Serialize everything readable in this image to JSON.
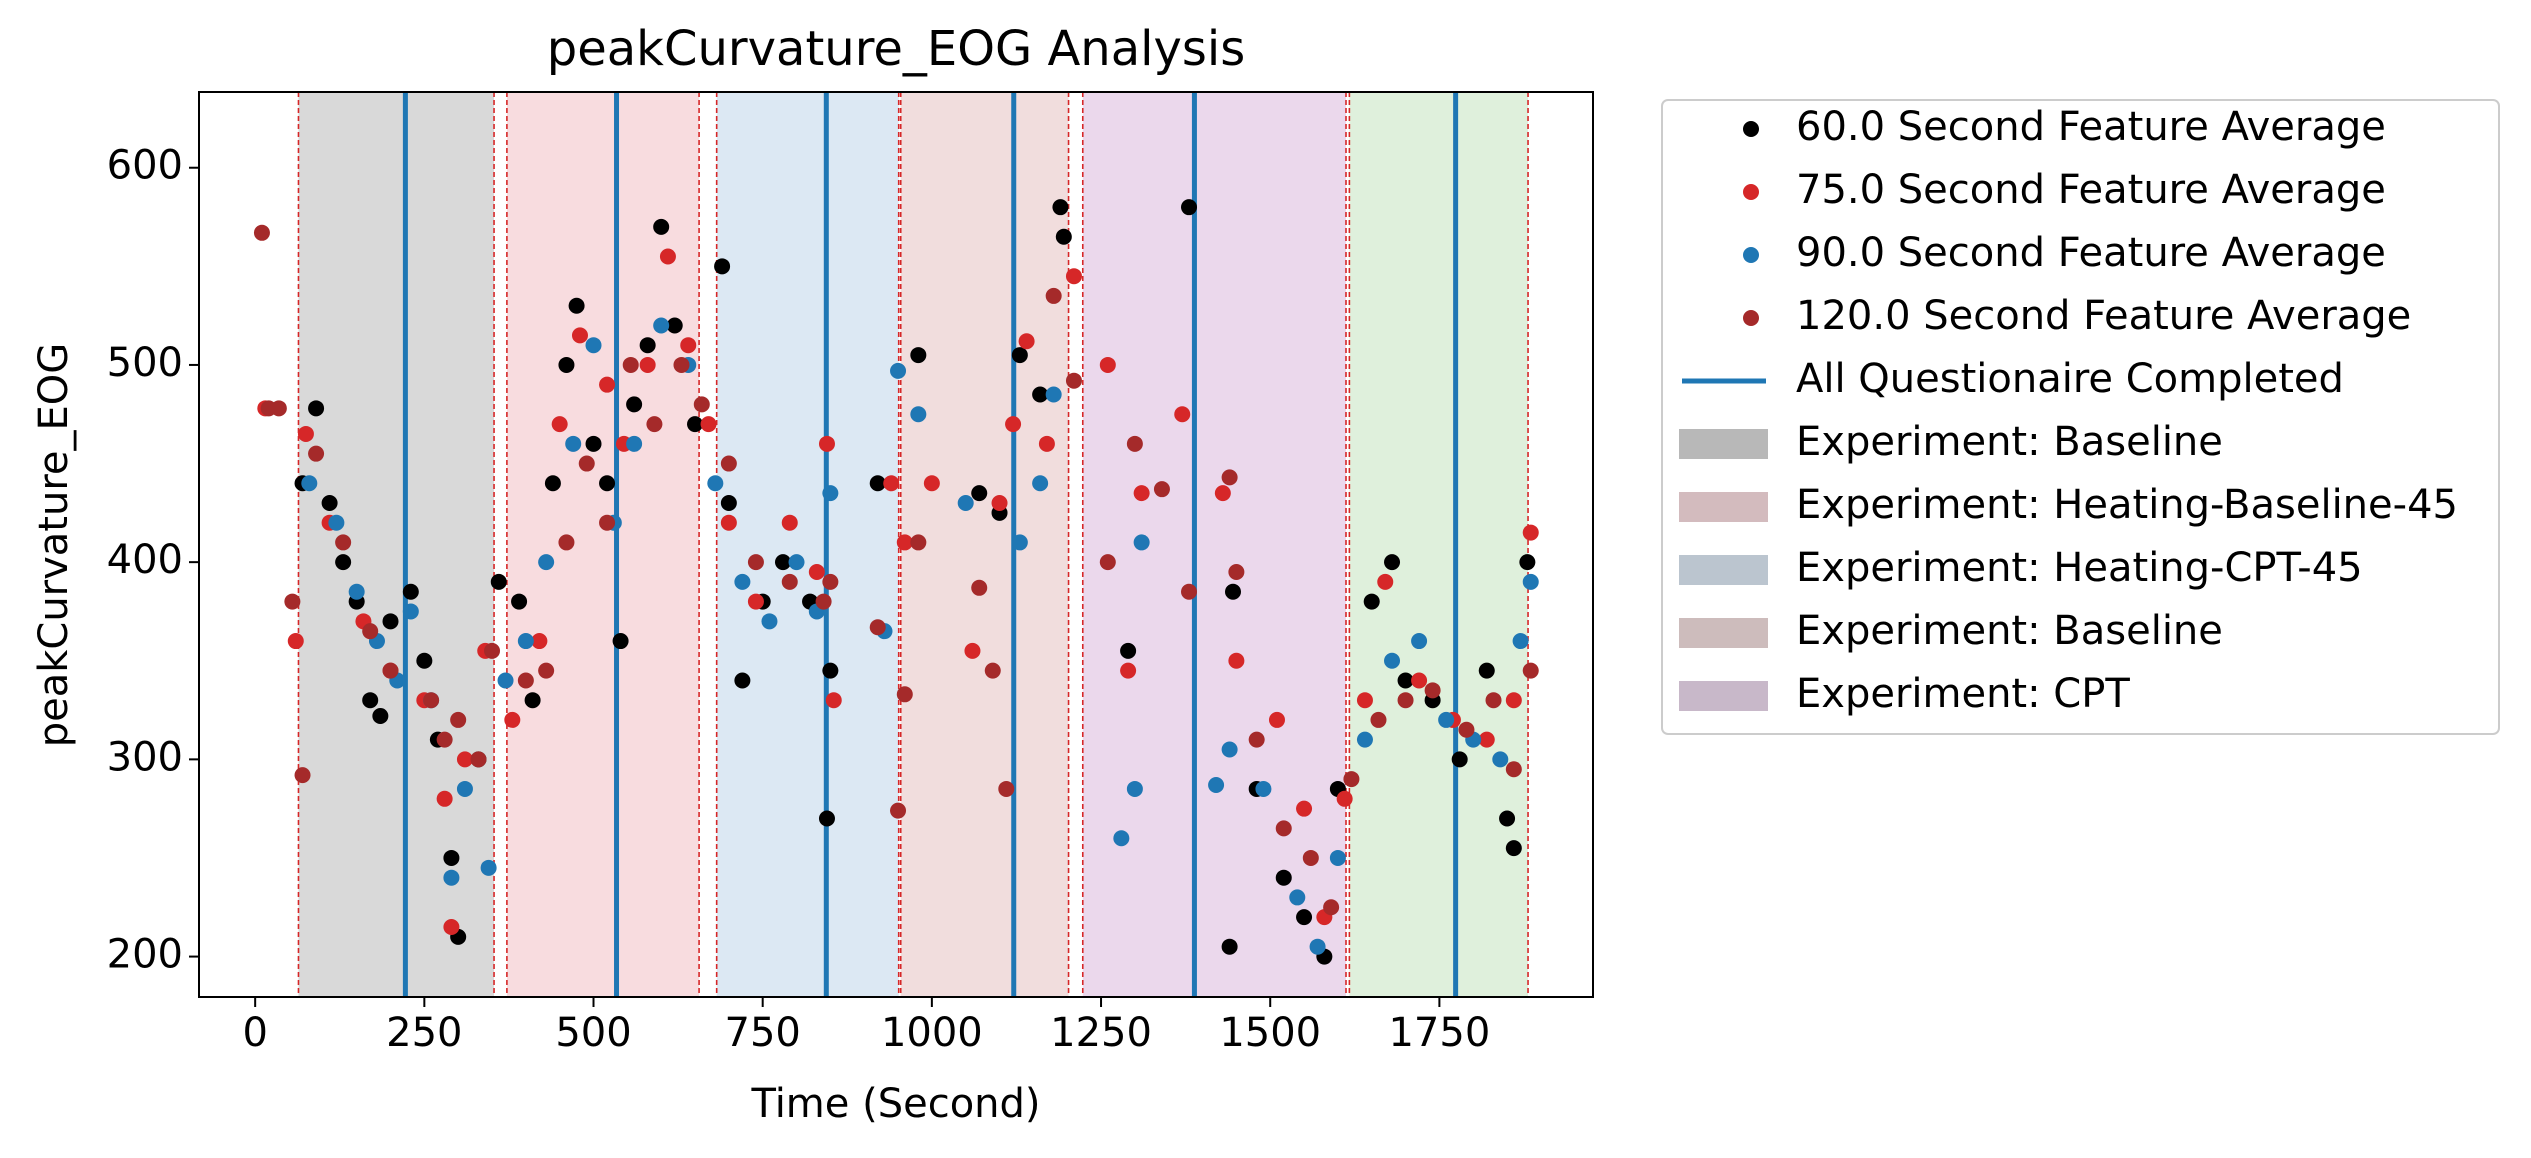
{
  "chart_data": {
    "type": "scatter",
    "title": "peakCurvature_EOG Analysis",
    "x_label": "Time (Second)",
    "y_label": "peakCurvature_EOG",
    "xlim": [
      -83,
      1977
    ],
    "ylim": [
      179.5,
      638.4
    ],
    "xticks": [
      0,
      250,
      500,
      750,
      1000,
      1250,
      1500,
      1750
    ],
    "yticks": [
      200,
      300,
      400,
      500,
      600
    ],
    "spans": [
      {
        "label": "Experiment: Baseline",
        "start": 64,
        "end": 353,
        "color": "#d9d9d9"
      },
      {
        "label": "Experiment: Heating-Baseline-45",
        "start": 372,
        "end": 656,
        "color": "#f8dcdf"
      },
      {
        "label": "Experiment: Heating-CPT-45",
        "start": 682,
        "end": 951,
        "color": "#dce8f3"
      },
      {
        "label": "Experiment: Baseline",
        "start": 954,
        "end": 1202,
        "color": "#f1dddd"
      },
      {
        "label": "Experiment: CPT",
        "start": 1223,
        "end": 1612,
        "color": "#ebd8ec"
      },
      {
        "start": 1617,
        "end": 1881,
        "color": "#dff0dc"
      }
    ],
    "span_edge_color": "#d62728",
    "vlines": {
      "name": "All Questionaire Completed",
      "color": "#1f77b4",
      "x": [
        222,
        534,
        844,
        1121,
        1388,
        1774
      ]
    },
    "series": [
      {
        "name": "60.0 Second Feature Average",
        "color": "#000000",
        "x": [
          70,
          90,
          110,
          130,
          150,
          170,
          185,
          200,
          230,
          250,
          270,
          290,
          300,
          330,
          360,
          390,
          410,
          440,
          460,
          475,
          500,
          520,
          540,
          560,
          580,
          600,
          620,
          650,
          690,
          700,
          720,
          750,
          780,
          820,
          845,
          850,
          920,
          980,
          1070,
          1100,
          1130,
          1160,
          1190,
          1195,
          1290,
          1380,
          1440,
          1445,
          1480,
          1520,
          1550,
          1580,
          1600,
          1650,
          1680,
          1700,
          1740,
          1780,
          1820,
          1850,
          1860,
          1880
        ],
        "values": [
          440,
          478,
          430,
          400,
          380,
          330,
          322,
          370,
          385,
          350,
          310,
          250,
          210,
          300,
          390,
          380,
          330,
          440,
          500,
          530,
          460,
          440,
          360,
          480,
          510,
          570,
          520,
          470,
          550,
          430,
          340,
          380,
          400,
          380,
          270,
          345,
          440,
          505,
          435,
          425,
          505,
          485,
          580,
          565,
          355,
          580,
          205,
          385,
          285,
          240,
          220,
          200,
          285,
          380,
          400,
          340,
          330,
          300,
          345,
          270,
          255,
          400
        ]
      },
      {
        "name": "75.0 Second Feature Average",
        "color": "#d62728",
        "x": [
          15,
          60,
          75,
          110,
          160,
          200,
          250,
          280,
          290,
          310,
          340,
          380,
          420,
          450,
          480,
          520,
          545,
          580,
          610,
          640,
          670,
          700,
          740,
          790,
          830,
          845,
          855,
          940,
          960,
          1000,
          1060,
          1100,
          1120,
          1140,
          1170,
          1210,
          1260,
          1290,
          1310,
          1370,
          1430,
          1450,
          1510,
          1550,
          1580,
          1610,
          1640,
          1670,
          1720,
          1770,
          1820,
          1860,
          1885
        ],
        "values": [
          478,
          360,
          465,
          420,
          370,
          345,
          330,
          280,
          215,
          300,
          355,
          320,
          360,
          470,
          515,
          490,
          460,
          500,
          555,
          510,
          470,
          420,
          380,
          420,
          395,
          460,
          330,
          440,
          410,
          440,
          355,
          430,
          470,
          512,
          460,
          545,
          500,
          345,
          435,
          475,
          435,
          350,
          320,
          275,
          220,
          280,
          330,
          390,
          340,
          320,
          310,
          330,
          415
        ]
      },
      {
        "name": "90.0 Second Feature Average",
        "color": "#1f77b4",
        "x": [
          80,
          120,
          150,
          180,
          210,
          230,
          260,
          290,
          310,
          345,
          370,
          400,
          430,
          470,
          500,
          530,
          560,
          600,
          640,
          680,
          720,
          760,
          800,
          830,
          850,
          930,
          950,
          980,
          1050,
          1130,
          1160,
          1180,
          1280,
          1300,
          1310,
          1420,
          1440,
          1490,
          1540,
          1570,
          1600,
          1640,
          1680,
          1720,
          1760,
          1800,
          1840,
          1870,
          1885
        ],
        "values": [
          440,
          420,
          385,
          360,
          340,
          375,
          330,
          240,
          285,
          245,
          340,
          360,
          400,
          460,
          510,
          420,
          460,
          520,
          500,
          440,
          390,
          370,
          400,
          375,
          435,
          365,
          497,
          475,
          430,
          410,
          440,
          485,
          260,
          285,
          410,
          287,
          305,
          285,
          230,
          205,
          250,
          310,
          350,
          360,
          320,
          310,
          300,
          360,
          390
        ]
      },
      {
        "name": "120.0 Second Feature Average",
        "color": "#a52a2a",
        "x": [
          10,
          20,
          35,
          55,
          70,
          90,
          130,
          170,
          200,
          260,
          280,
          300,
          330,
          350,
          400,
          430,
          460,
          490,
          520,
          555,
          590,
          630,
          660,
          700,
          740,
          790,
          840,
          850,
          920,
          950,
          960,
          980,
          1070,
          1090,
          1110,
          1180,
          1210,
          1260,
          1300,
          1340,
          1380,
          1440,
          1450,
          1480,
          1520,
          1560,
          1590,
          1620,
          1660,
          1700,
          1740,
          1790,
          1830,
          1860,
          1885
        ],
        "values": [
          567,
          478,
          478,
          380,
          292,
          455,
          410,
          365,
          345,
          330,
          310,
          320,
          300,
          355,
          340,
          345,
          410,
          450,
          420,
          500,
          470,
          500,
          480,
          450,
          400,
          390,
          380,
          390,
          367,
          274,
          333,
          410,
          387,
          345,
          285,
          535,
          492,
          400,
          460,
          437,
          385,
          443,
          395,
          310,
          265,
          250,
          225,
          290,
          320,
          330,
          335,
          315,
          330,
          295,
          345
        ]
      }
    ]
  }
}
